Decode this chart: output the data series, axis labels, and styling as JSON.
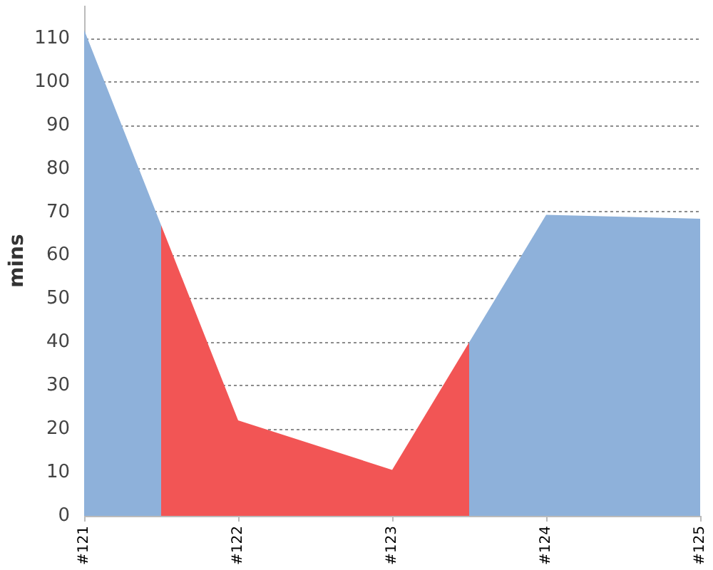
{
  "chart_data": {
    "type": "area",
    "ylabel": "mins",
    "categories": [
      "#121",
      "#122",
      "#123",
      "#124",
      "#125"
    ],
    "values": [
      112,
      22,
      10.6,
      69.4,
      68.5
    ],
    "colors": [
      "#8eb1da",
      "#f25555",
      "#f25555",
      "#8eb1da",
      "#8eb1da"
    ],
    "ylim": [
      0,
      117.6
    ],
    "yticks": [
      0,
      10,
      20,
      30,
      40,
      50,
      60,
      70,
      80,
      90,
      100,
      110
    ],
    "grid": "y"
  }
}
